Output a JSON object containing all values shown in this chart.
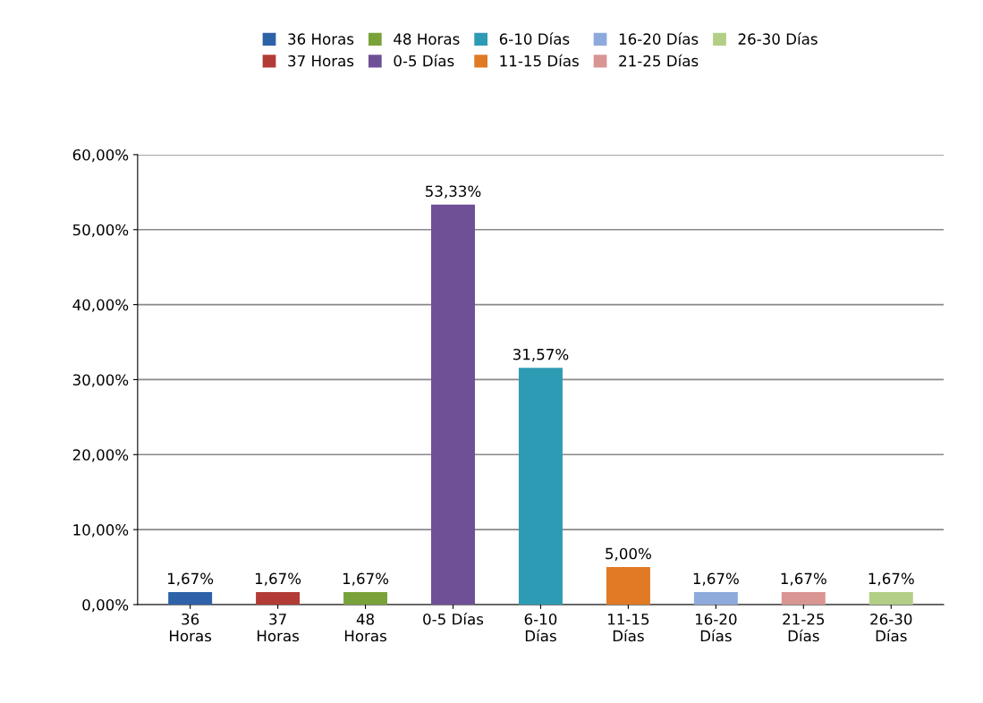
{
  "chart_data": {
    "type": "bar",
    "categories": [
      "36\nHoras",
      "37\nHoras",
      "48\nHoras",
      "0-5 Días",
      "6-10\nDías",
      "11-15\nDías",
      "16-20\nDías",
      "21-25\nDías",
      "26-30\nDías"
    ],
    "series": [
      {
        "name": "36 Horas",
        "color": "#2e62a8",
        "values": [
          1.67,
          null,
          null,
          null,
          null,
          null,
          null,
          null,
          null
        ],
        "value_labels": [
          "1,67%",
          null,
          null,
          null,
          null,
          null,
          null,
          null,
          null
        ]
      },
      {
        "name": "37 Horas",
        "color": "#b23b36",
        "values": [
          null,
          1.67,
          null,
          null,
          null,
          null,
          null,
          null,
          null
        ],
        "value_labels": [
          null,
          "1,67%",
          null,
          null,
          null,
          null,
          null,
          null,
          null
        ]
      },
      {
        "name": "48 Horas",
        "color": "#7aa23a",
        "values": [
          null,
          null,
          1.67,
          null,
          null,
          null,
          null,
          null,
          null
        ],
        "value_labels": [
          null,
          null,
          "1,67%",
          null,
          null,
          null,
          null,
          null,
          null
        ]
      },
      {
        "name": "0-5 Días",
        "color": "#6f4f96",
        "values": [
          null,
          null,
          null,
          53.33,
          null,
          null,
          null,
          null,
          null
        ],
        "value_labels": [
          null,
          null,
          null,
          "53,33%",
          null,
          null,
          null,
          null,
          null
        ]
      },
      {
        "name": "6-10 Días",
        "color": "#2e9bb5",
        "values": [
          null,
          null,
          null,
          null,
          31.57,
          null,
          null,
          null,
          null
        ],
        "value_labels": [
          null,
          null,
          null,
          null,
          "31,57%",
          null,
          null,
          null,
          null
        ]
      },
      {
        "name": "11-15 Días",
        "color": "#e07a24",
        "values": [
          null,
          null,
          null,
          null,
          null,
          5.0,
          null,
          null,
          null
        ],
        "value_labels": [
          null,
          null,
          null,
          null,
          null,
          "5,00%",
          null,
          null,
          null
        ]
      },
      {
        "name": "16-20 Días",
        "color": "#8eaadc",
        "values": [
          null,
          null,
          null,
          null,
          null,
          null,
          1.67,
          null,
          null
        ],
        "value_labels": [
          null,
          null,
          null,
          null,
          null,
          null,
          "1,67%",
          null,
          null
        ]
      },
      {
        "name": "21-25 Días",
        "color": "#d99592",
        "values": [
          null,
          null,
          null,
          null,
          null,
          null,
          null,
          1.67,
          null
        ],
        "value_labels": [
          null,
          null,
          null,
          null,
          null,
          null,
          null,
          "1,67%",
          null
        ]
      },
      {
        "name": "26-30 Días",
        "color": "#b3cf86",
        "values": [
          null,
          null,
          null,
          null,
          null,
          null,
          null,
          null,
          1.67
        ],
        "value_labels": [
          null,
          null,
          null,
          null,
          null,
          null,
          null,
          null,
          "1,67%"
        ]
      }
    ],
    "ylim": [
      0,
      60
    ],
    "yticks": [
      {
        "value": 0,
        "label": "0,00%"
      },
      {
        "value": 10,
        "label": "10,00%"
      },
      {
        "value": 20,
        "label": "20,00%"
      },
      {
        "value": 30,
        "label": "30,00%"
      },
      {
        "value": 40,
        "label": "40,00%"
      },
      {
        "value": 50,
        "label": "50,00%"
      },
      {
        "value": 60,
        "label": "60,00%"
      }
    ],
    "grid": "y",
    "legend": "top"
  }
}
